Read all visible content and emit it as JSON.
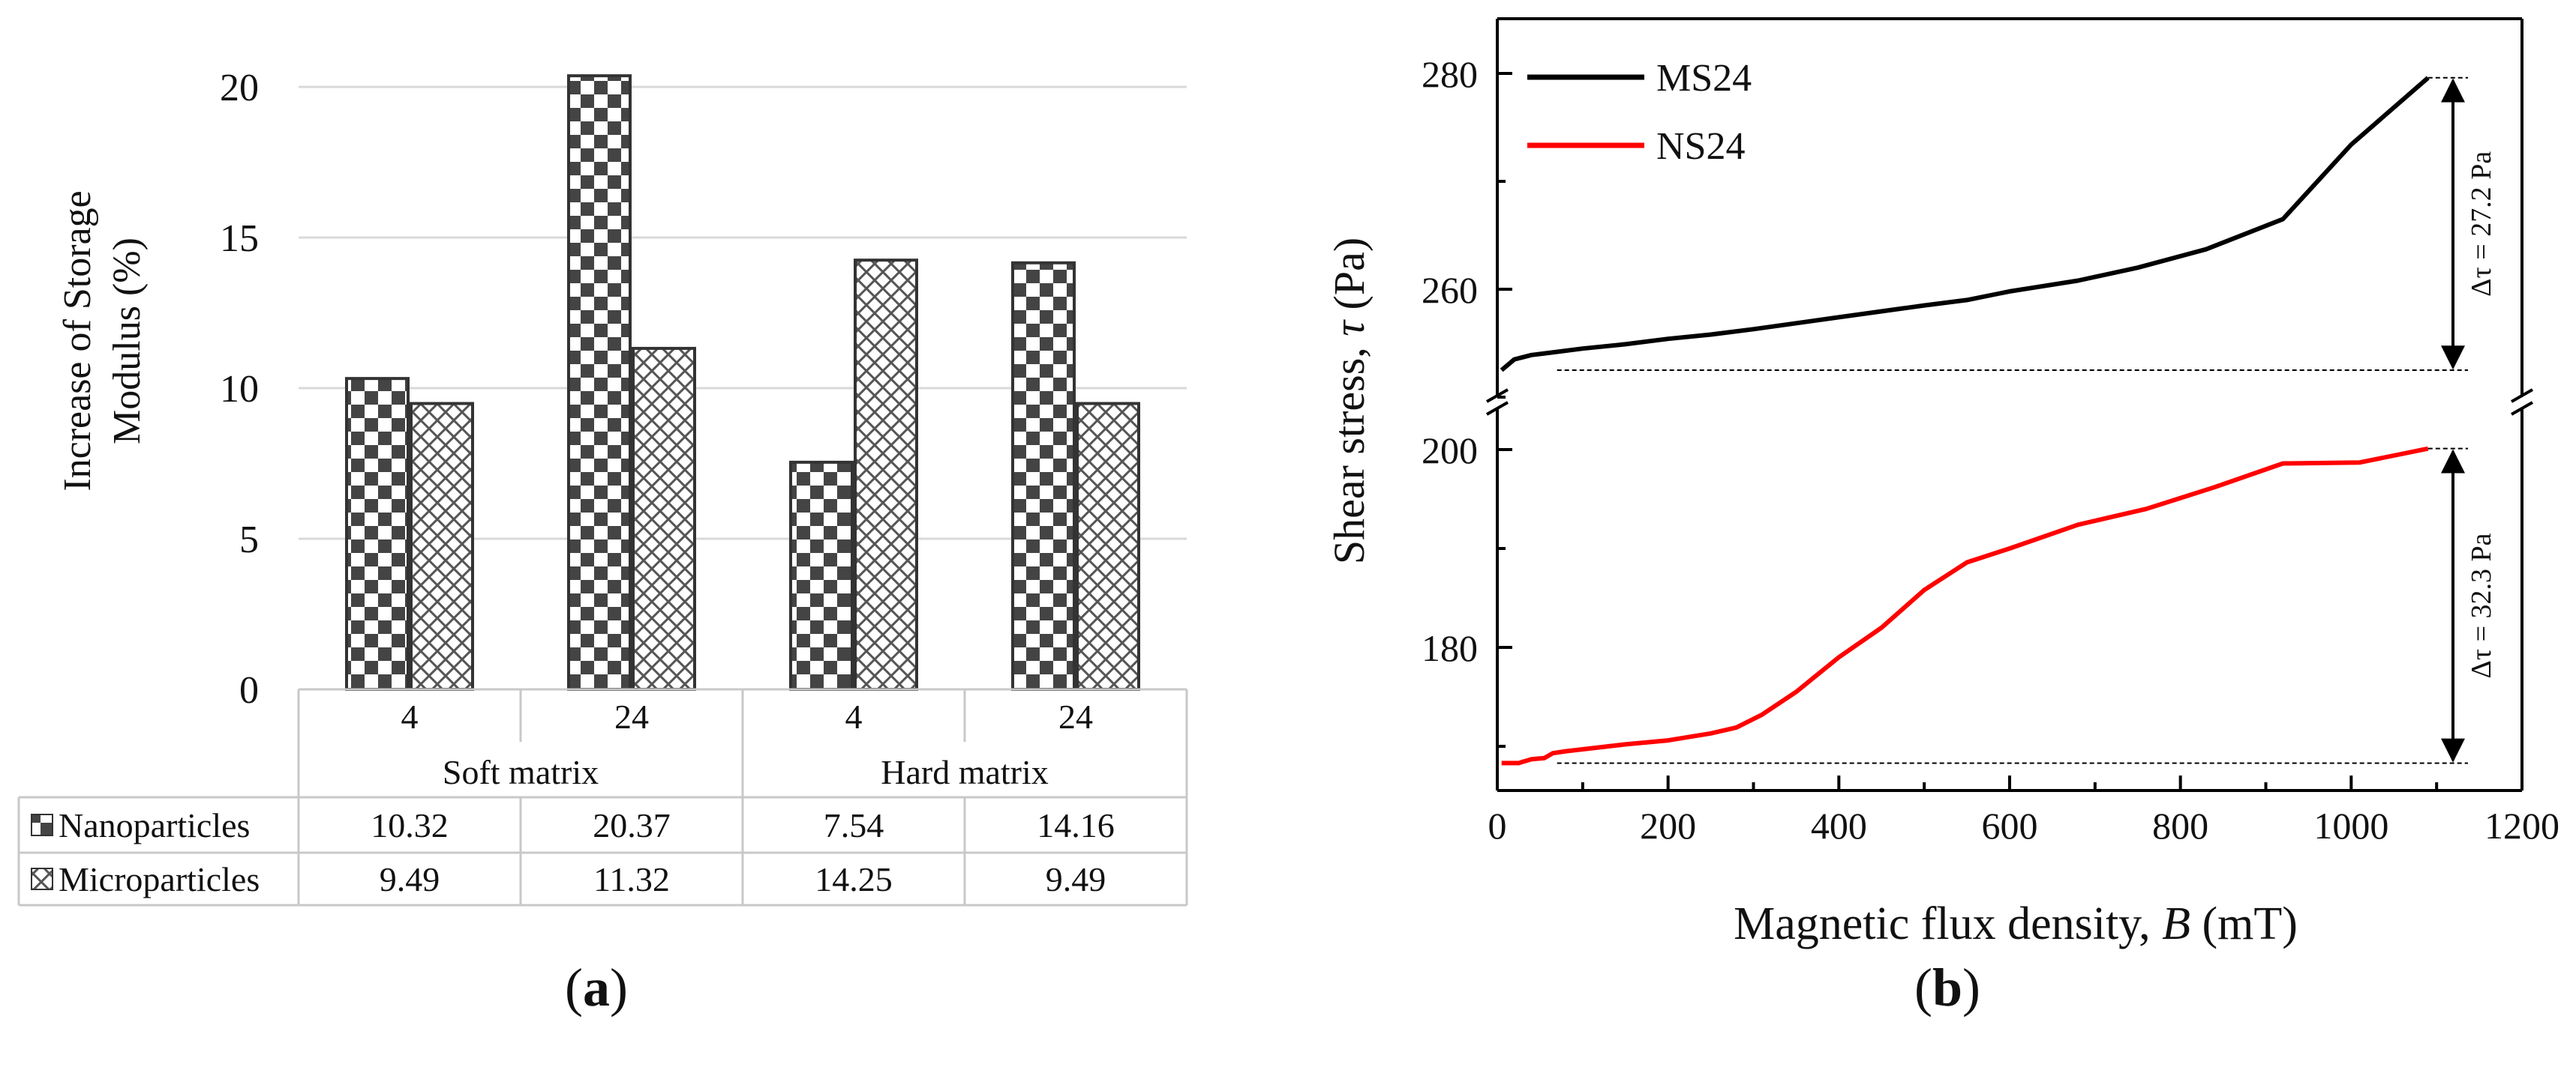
{
  "panels": {
    "a": {
      "label": "(a)",
      "label_parts": [
        "(",
        "a",
        ")"
      ]
    },
    "b": {
      "label": "(b)",
      "label_parts": [
        "(",
        "b",
        ")"
      ]
    }
  },
  "colors": {
    "bars": "#444444",
    "black": "#000000",
    "red": "#ff0000",
    "grid": "#d9d9d9"
  },
  "chart_data": [
    {
      "type": "bar",
      "ylabel_lines": [
        "Increase of Storage",
        "Modulus (%)"
      ],
      "ylim": [
        0,
        20
      ],
      "yticks": [
        "0",
        "5",
        "10",
        "15",
        "20"
      ],
      "grid": true,
      "groups": [
        {
          "name": "Soft matrix",
          "categories": [
            "4",
            "24"
          ]
        },
        {
          "name": "Hard matrix",
          "categories": [
            "4",
            "24"
          ]
        }
      ],
      "categories": [
        "4",
        "24",
        "4",
        "24"
      ],
      "series": [
        {
          "name": "Nanoparticles",
          "pattern": "checker",
          "values": [
            10.32,
            20.37,
            7.54,
            14.16
          ],
          "labels": [
            "10.32",
            "20.37",
            "7.54",
            "14.16"
          ]
        },
        {
          "name": "Microparticles",
          "pattern": "crosshatch",
          "values": [
            9.49,
            11.32,
            14.25,
            9.49
          ],
          "labels": [
            "9.49",
            "11.32",
            "14.25",
            "9.49"
          ]
        }
      ]
    },
    {
      "type": "line",
      "xlabel": {
        "prefix": "Magnetic flux density, ",
        "symbol": "B",
        "suffix": " (mT)"
      },
      "ylabel": {
        "prefix": "Shear stress, ",
        "symbol": "τ",
        "suffix": " (Pa)"
      },
      "xlim": [
        0,
        1200
      ],
      "xticks": [
        "0",
        "200",
        "400",
        "600",
        "800",
        "1000",
        "1200"
      ],
      "broken_axis": true,
      "ylim_upper": [
        247,
        285
      ],
      "yticks_upper": [
        "260",
        "280"
      ],
      "ylim_lower": [
        165,
        204
      ],
      "yticks_lower": [
        "180",
        "200"
      ],
      "legend": "top-left",
      "series": [
        {
          "name": "MS24",
          "color": "#000000",
          "segment": "upper",
          "x": [
            5,
            20,
            40,
            60,
            100,
            150,
            200,
            250,
            300,
            400,
            500,
            550,
            600,
            680,
            750,
            830,
            920,
            1000,
            1090
          ],
          "y": [
            252.5,
            253.5,
            253.9,
            254.1,
            254.5,
            254.9,
            255.4,
            255.8,
            256.3,
            257.4,
            258.5,
            259.0,
            259.8,
            260.8,
            262.0,
            263.7,
            266.5,
            273.4,
            279.6
          ]
        },
        {
          "name": "NS24",
          "color": "#ff0000",
          "segment": "lower",
          "x": [
            5,
            25,
            40,
            55,
            65,
            80,
            100,
            150,
            200,
            250,
            280,
            310,
            350,
            400,
            450,
            500,
            550,
            600,
            680,
            760,
            840,
            920,
            1010,
            1090
          ],
          "y": [
            168.3,
            168.3,
            168.7,
            168.8,
            169.3,
            169.5,
            169.7,
            170.2,
            170.6,
            171.3,
            171.9,
            173.2,
            175.5,
            179.0,
            182.0,
            185.8,
            188.6,
            190.0,
            192.4,
            194.0,
            196.2,
            198.6,
            198.7,
            200.1
          ]
        }
      ],
      "annotations": [
        {
          "text": "Δτ = 27.2 Pa",
          "series": "MS24"
        },
        {
          "text": "Δτ = 32.3 Pa",
          "series": "NS24"
        }
      ]
    }
  ]
}
